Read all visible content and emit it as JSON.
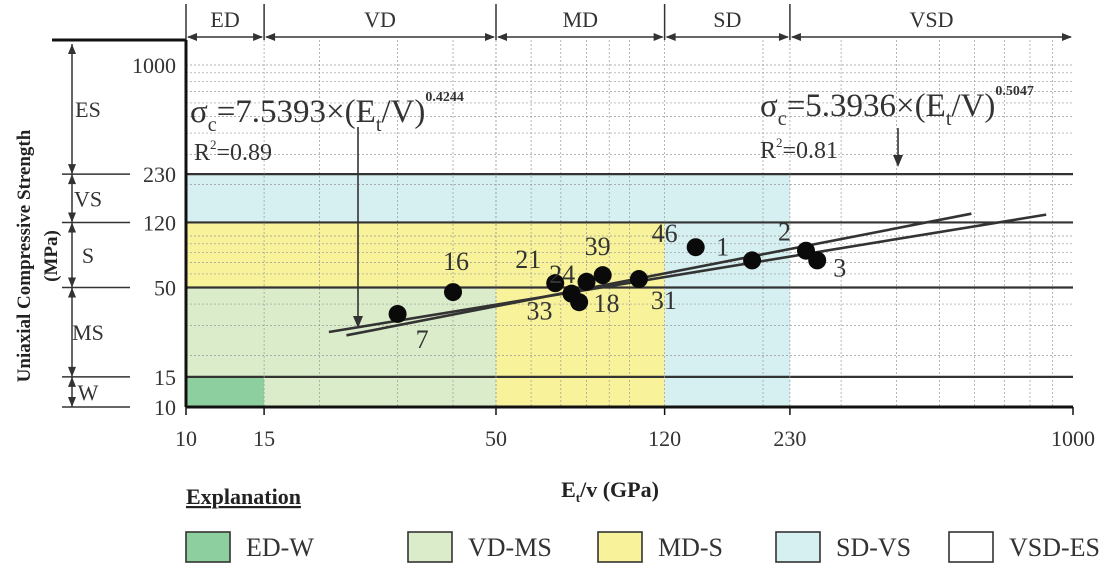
{
  "chart_data": {
    "type": "scatter",
    "xlabel_main": "E",
    "xlabel_sub": "t",
    "xlabel_rest": "/v (GPa)",
    "ylabel": "Uniaxial Compressive Strength",
    "ylabel2": "(MPa)",
    "x_scale": "log",
    "y_scale": "log",
    "xlim": [
      10,
      1000
    ],
    "ylim": [
      10,
      1400
    ],
    "x_ticks": [
      {
        "value": 10,
        "label": "10"
      },
      {
        "value": 15,
        "label": "15"
      },
      {
        "value": 50,
        "label": "50"
      },
      {
        "value": 120,
        "label": "120"
      },
      {
        "value": 230,
        "label": "230"
      },
      {
        "value": 1000,
        "label": "1000"
      }
    ],
    "y_ticks": [
      {
        "value": 10,
        "label": "10"
      },
      {
        "value": 15,
        "label": "15"
      },
      {
        "value": 50,
        "label": "50"
      },
      {
        "value": 120,
        "label": "120"
      },
      {
        "value": 230,
        "label": "230"
      },
      {
        "value": 1000,
        "label": "1000"
      }
    ],
    "x_classes": [
      {
        "label": "ED",
        "from": 10,
        "to": 15
      },
      {
        "label": "VD",
        "from": 15,
        "to": 50
      },
      {
        "label": "MD",
        "from": 50,
        "to": 120
      },
      {
        "label": "SD",
        "from": 120,
        "to": 230
      },
      {
        "label": "VSD",
        "from": 230,
        "to": 1000
      }
    ],
    "y_classes": [
      {
        "label": "ES",
        "from": 230,
        "to": 1400
      },
      {
        "label": "VS",
        "from": 120,
        "to": 230
      },
      {
        "label": "S",
        "from": 50,
        "to": 120
      },
      {
        "label": "MS",
        "from": 15,
        "to": 50
      },
      {
        "label": "W",
        "from": 10,
        "to": 15
      }
    ],
    "regions": [
      {
        "name": "ED-W",
        "color": "#8ecfa0",
        "x": [
          10,
          15
        ],
        "y": [
          10,
          15
        ]
      },
      {
        "name": "VD-MS",
        "color": "#dbeccb",
        "x": [
          10,
          50
        ],
        "y": [
          10,
          50
        ]
      },
      {
        "name": "MD-S",
        "color": "#f8f29b",
        "x": [
          10,
          120
        ],
        "y": [
          10,
          120
        ]
      },
      {
        "name": "SD-VS",
        "color": "#d6eff0",
        "x": [
          10,
          230
        ],
        "y": [
          10,
          230
        ]
      },
      {
        "name": "VSD-ES",
        "color": "#ffffff",
        "x": [
          10,
          1000
        ],
        "y": [
          10,
          1400
        ]
      }
    ],
    "points": [
      {
        "label": "7",
        "x": 30,
        "y": 35
      },
      {
        "label": "16",
        "x": 40,
        "y": 47
      },
      {
        "label": "21",
        "x": 68,
        "y": 53
      },
      {
        "label": "33",
        "x": 74,
        "y": 46
      },
      {
        "label": "24",
        "x": 77,
        "y": 41
      },
      {
        "label": "18",
        "x": 80,
        "y": 54
      },
      {
        "label": "39",
        "x": 87,
        "y": 59
      },
      {
        "label": "31",
        "x": 105,
        "y": 56
      },
      {
        "label": "46",
        "x": 141,
        "y": 86
      },
      {
        "label": "1",
        "x": 189,
        "y": 72
      },
      {
        "label": "2",
        "x": 250,
        "y": 82
      },
      {
        "label": "3",
        "x": 265,
        "y": 72
      }
    ],
    "fits": [
      {
        "coef": "5.3936",
        "exp": "0.5047",
        "r2": "0.81",
        "from": 23,
        "to": 590
      },
      {
        "coef": "7.5393",
        "exp": "0.4244",
        "r2": "0.89",
        "from": 21,
        "to": 870
      }
    ],
    "annotations": {
      "eq_right": {
        "sigma": "σ",
        "sub": "c",
        "mid": "=5.3936×(E",
        "sub2": "t",
        "end": "/V)",
        "exp": "0.5047"
      },
      "r2_right": {
        "pre": "R",
        "sup": "2",
        "post": "=0.81"
      },
      "eq_left": {
        "sigma": "σ",
        "sub": "c",
        "mid": "=7.5393×(E",
        "sub2": "t",
        "end": "/V)",
        "exp": "0.4244"
      },
      "r2_left": {
        "pre": "R",
        "sup": "2",
        "post": "=0.89"
      }
    },
    "legend": {
      "title": "Explanation",
      "items": [
        {
          "label": "ED-W",
          "color": "#8ecfa0"
        },
        {
          "label": "VD-MS",
          "color": "#dbeccb"
        },
        {
          "label": "MD-S",
          "color": "#f8f29b"
        },
        {
          "label": "SD-VS",
          "color": "#d6eff0"
        },
        {
          "label": "VSD-ES",
          "color": "#ffffff"
        }
      ]
    }
  }
}
